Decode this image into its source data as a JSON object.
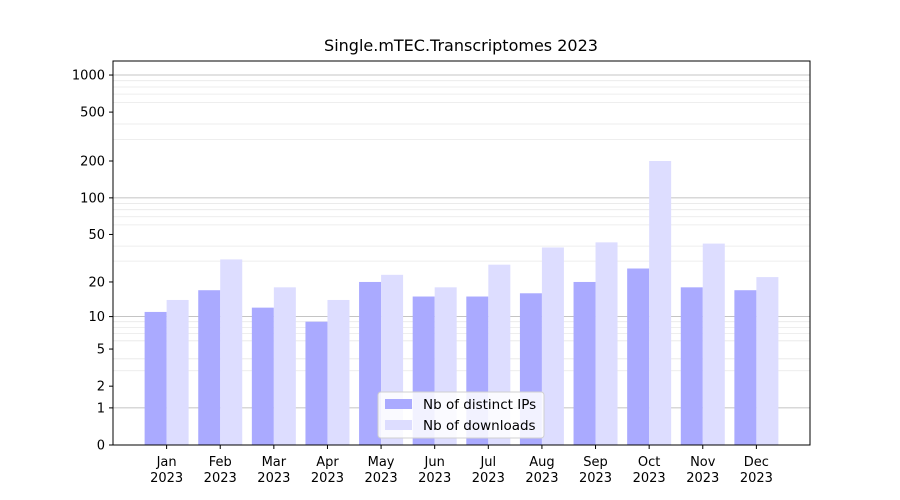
{
  "chart_data": {
    "type": "bar",
    "title": "Single.mTEC.Transcriptomes 2023",
    "xlabel": "",
    "ylabel": "",
    "yscale": "log(1+y)",
    "ylim": [
      0,
      1300
    ],
    "grid": "horizontal",
    "legend_position": "lower center",
    "categories": [
      [
        "Jan",
        "2023"
      ],
      [
        "Feb",
        "2023"
      ],
      [
        "Mar",
        "2023"
      ],
      [
        "Apr",
        "2023"
      ],
      [
        "May",
        "2023"
      ],
      [
        "Jun",
        "2023"
      ],
      [
        "Jul",
        "2023"
      ],
      [
        "Aug",
        "2023"
      ],
      [
        "Sep",
        "2023"
      ],
      [
        "Oct",
        "2023"
      ],
      [
        "Nov",
        "2023"
      ],
      [
        "Dec",
        "2023"
      ]
    ],
    "y_ticks": [
      0,
      1,
      2,
      5,
      10,
      20,
      50,
      100,
      200,
      500,
      1000
    ],
    "series": [
      {
        "name": "Nb of distinct IPs",
        "color": "#aaaaff",
        "values": [
          11,
          17,
          12,
          9,
          20,
          15,
          15,
          16,
          20,
          26,
          18,
          17
        ]
      },
      {
        "name": "Nb of downloads",
        "color": "#ddddff",
        "values": [
          14,
          31,
          18,
          14,
          23,
          18,
          28,
          39,
          43,
          200,
          42,
          22
        ]
      }
    ]
  }
}
